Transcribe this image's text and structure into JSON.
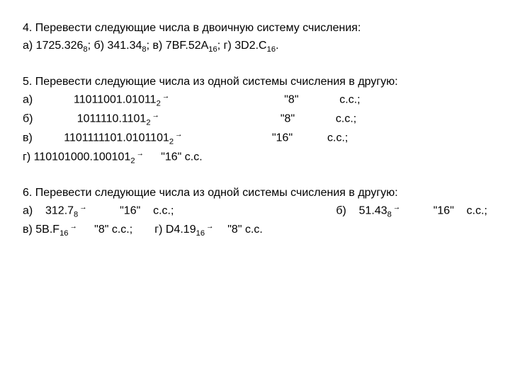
{
  "q4": {
    "title": "4. Перевести следующие числа в двоичную систему счисления:",
    "a_prefix": "а) 1725.326",
    "a_sub": "8",
    "a_sep": "; б) 341.34",
    "b_sub": "8",
    "b_sep": "; в) 7BF.52A",
    "c_sub": "16",
    "c_sep": "; г) 3D2.C",
    "d_sub": "16",
    "tail": "."
  },
  "q5": {
    "title": "5. Перевести следующие числа из одной системы счисления в другую:",
    "a": {
      "lead": "а)             11011001.01011",
      "sub": "2",
      "mid": "                                    \"8\"             с.с.;"
    },
    "b": {
      "lead": "б)              1011110.1101",
      "sub": "2",
      "mid": "                                      \"8\"             с.с.;"
    },
    "c": {
      "lead": "в)          1101111101.0101101",
      "sub": "2",
      "mid": "                            \"16\"           с.с.;"
    },
    "d": {
      "lead": "г) 110101000.100101",
      "sub": "2",
      "mid": "     \"16\" с.с."
    }
  },
  "q6": {
    "title": "6. Перевести следующие числа из одной системы счисления в другую:",
    "a": {
      "lead": "а)    312.7",
      "sub": "8",
      "mid": "          \"16\"    с.с.;"
    },
    "b": {
      "lead": "б)    51.43",
      "sub": "8",
      "mid": "          \"16\"    с.с.;"
    },
    "c": {
      "lead": "в) 5B.F",
      "sub": "16",
      "mid": "     \"8\" с.с.;"
    },
    "d": {
      "lead": "г) D4.19",
      "sub": "16",
      "mid": "    \"8\" с.с."
    }
  },
  "arrow": "→"
}
